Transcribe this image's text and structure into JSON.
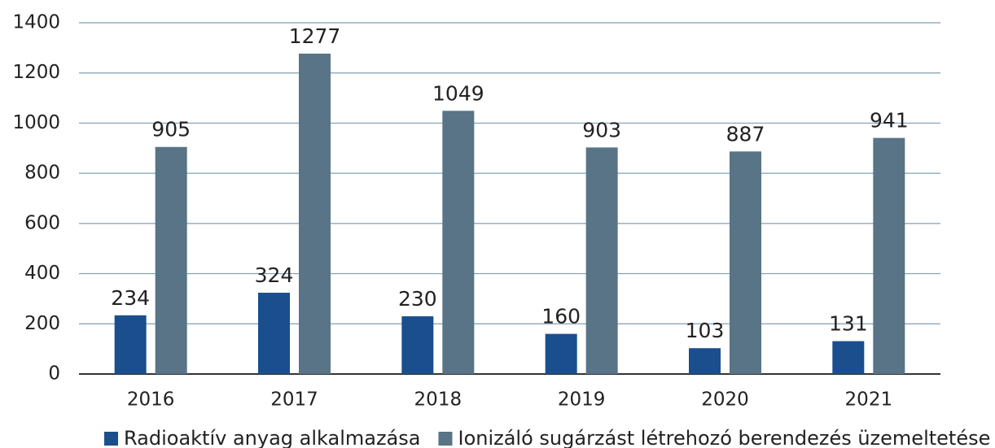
{
  "chart_data": {
    "type": "bar",
    "categories": [
      "2016",
      "2017",
      "2018",
      "2019",
      "2020",
      "2021"
    ],
    "series": [
      {
        "name": "Radioaktív anyag alkalmazása",
        "color": "#1b4e8d",
        "values": [
          234,
          324,
          230,
          160,
          103,
          131
        ]
      },
      {
        "name": "Ionizáló sugárzást létrehozó berendezés üzemeltetése",
        "color": "#587486",
        "values": [
          905,
          1277,
          1049,
          903,
          887,
          941
        ]
      }
    ],
    "ylim": [
      0,
      1400
    ],
    "yticks": [
      0,
      200,
      400,
      600,
      800,
      1000,
      1200,
      1400
    ],
    "grid": true,
    "legend": "bottom"
  }
}
